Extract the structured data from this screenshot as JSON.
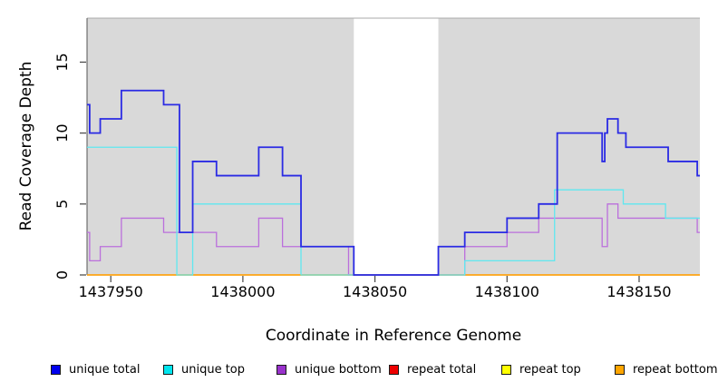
{
  "chart_data": {
    "type": "line",
    "subtype": "step",
    "title": "",
    "xlabel": "Coordinate in Reference Genome",
    "ylabel": "Read Coverage Depth",
    "xlim": [
      1437941,
      1438173
    ],
    "ylim": [
      0,
      18.1
    ],
    "x_ticks": [
      1437950,
      1438000,
      1438050,
      1438100,
      1438150
    ],
    "x_tick_labels": [
      "1437950",
      "1438000",
      "1438050",
      "1438100",
      "1438150"
    ],
    "y_ticks": [
      0,
      5,
      10,
      15
    ],
    "y_tick_labels": [
      "0",
      "5",
      "10",
      "15"
    ],
    "grid": false,
    "legend_position": "bottom",
    "plot_bg": "#D9D9D9",
    "outer_bg": "#FFFFFF",
    "masked_region": {
      "from": 1438042,
      "to": 1438074,
      "color": "#FFFFFF"
    },
    "series": [
      {
        "name": "unique total",
        "legend_color": "#0000EE",
        "line_color": "#2B2BE4",
        "line_width": 1.8,
        "draw_index": 5,
        "steps": [
          [
            1437941,
            12
          ],
          [
            1437942,
            10
          ],
          [
            1437946,
            11
          ],
          [
            1437954,
            13
          ],
          [
            1437970,
            12
          ],
          [
            1437976,
            3
          ],
          [
            1437981,
            8
          ],
          [
            1437990,
            7
          ],
          [
            1438006,
            9
          ],
          [
            1438015,
            7
          ],
          [
            1438022,
            2
          ],
          [
            1438042,
            0
          ],
          [
            1438074,
            2
          ],
          [
            1438084,
            3
          ],
          [
            1438100,
            4
          ],
          [
            1438112,
            5
          ],
          [
            1438119,
            10
          ],
          [
            1438136,
            8
          ],
          [
            1438137,
            10
          ],
          [
            1438138,
            11
          ],
          [
            1438142,
            10
          ],
          [
            1438145,
            9
          ],
          [
            1438161,
            8
          ],
          [
            1438172,
            7
          ]
        ]
      },
      {
        "name": "unique top",
        "legend_color": "#00E5EE",
        "line_color": "#5FE8F0",
        "line_width": 1.3,
        "draw_index": 4,
        "steps": [
          [
            1437941,
            9
          ],
          [
            1437975,
            0
          ],
          [
            1437981,
            5
          ],
          [
            1438022,
            0
          ],
          [
            1438084,
            1
          ],
          [
            1438118,
            6
          ],
          [
            1438144,
            5
          ],
          [
            1438160,
            4
          ]
        ]
      },
      {
        "name": "unique bottom",
        "legend_color": "#9932CC",
        "line_color": "#BB6FDC",
        "line_width": 1.3,
        "draw_index": 3,
        "steps": [
          [
            1437941,
            3
          ],
          [
            1437942,
            1
          ],
          [
            1437946,
            2
          ],
          [
            1437954,
            4
          ],
          [
            1437970,
            3
          ],
          [
            1437990,
            2
          ],
          [
            1438006,
            4
          ],
          [
            1438015,
            2
          ],
          [
            1438040,
            0
          ],
          [
            1438084,
            2
          ],
          [
            1438100,
            3
          ],
          [
            1438112,
            4
          ],
          [
            1438136,
            2
          ],
          [
            1438138,
            5
          ],
          [
            1438142,
            4
          ],
          [
            1438172,
            3
          ]
        ]
      },
      {
        "name": "repeat total",
        "legend_color": "#EE0000",
        "line_color": "#EE0000",
        "line_width": 1.2,
        "draw_index": 0,
        "steps": [
          [
            1437941,
            0
          ]
        ]
      },
      {
        "name": "repeat top",
        "legend_color": "#FFFF00",
        "line_color": "#FFFF00",
        "line_width": 1.2,
        "draw_index": 1,
        "steps": [
          [
            1437941,
            0
          ]
        ]
      },
      {
        "name": "repeat bottom",
        "legend_color": "#FFA500",
        "line_color": "#FFA513",
        "line_width": 1.6,
        "draw_index": 2,
        "steps": [
          [
            1437941,
            0
          ]
        ]
      }
    ]
  }
}
